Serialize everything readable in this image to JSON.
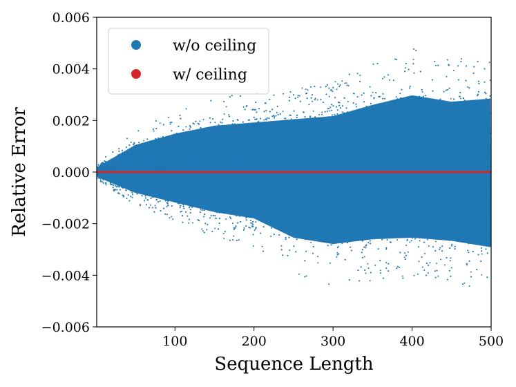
{
  "chart_data": {
    "type": "scatter",
    "title": "",
    "xlabel": "Sequence Length",
    "ylabel": "Relative Error",
    "xlim": [
      1,
      500
    ],
    "ylim": [
      -0.006,
      0.006
    ],
    "xticks": [
      100,
      200,
      300,
      400,
      500
    ],
    "xtick_labels": [
      "100",
      "200",
      "300",
      "400",
      "500"
    ],
    "yticks": [
      -0.006,
      -0.004,
      -0.002,
      0.0,
      0.002,
      0.004,
      0.006
    ],
    "ytick_labels": [
      "−0.006",
      "−0.004",
      "−0.002",
      "0.000",
      "0.002",
      "0.004",
      "0.006"
    ],
    "grid": false,
    "legend_position": "top-left",
    "series": [
      {
        "name": "w/o ceiling",
        "color": "#1f77b4",
        "description_values": "error spread grows with sequence length",
        "spread_envelope": {
          "x": [
            1,
            50,
            100,
            150,
            200,
            250,
            300,
            350,
            400,
            450,
            500
          ],
          "upper": [
            0.0003,
            0.0017,
            0.0024,
            0.0029,
            0.0031,
            0.0033,
            0.0035,
            0.0042,
            0.0048,
            0.0044,
            0.0046
          ],
          "lower": [
            -0.0003,
            -0.0013,
            -0.0019,
            -0.0025,
            -0.0029,
            -0.0041,
            -0.0045,
            -0.0042,
            -0.0041,
            -0.0043,
            -0.0047
          ]
        }
      },
      {
        "name": "w/ ceiling",
        "color": "#d62728",
        "values_y": 0.0
      }
    ]
  }
}
